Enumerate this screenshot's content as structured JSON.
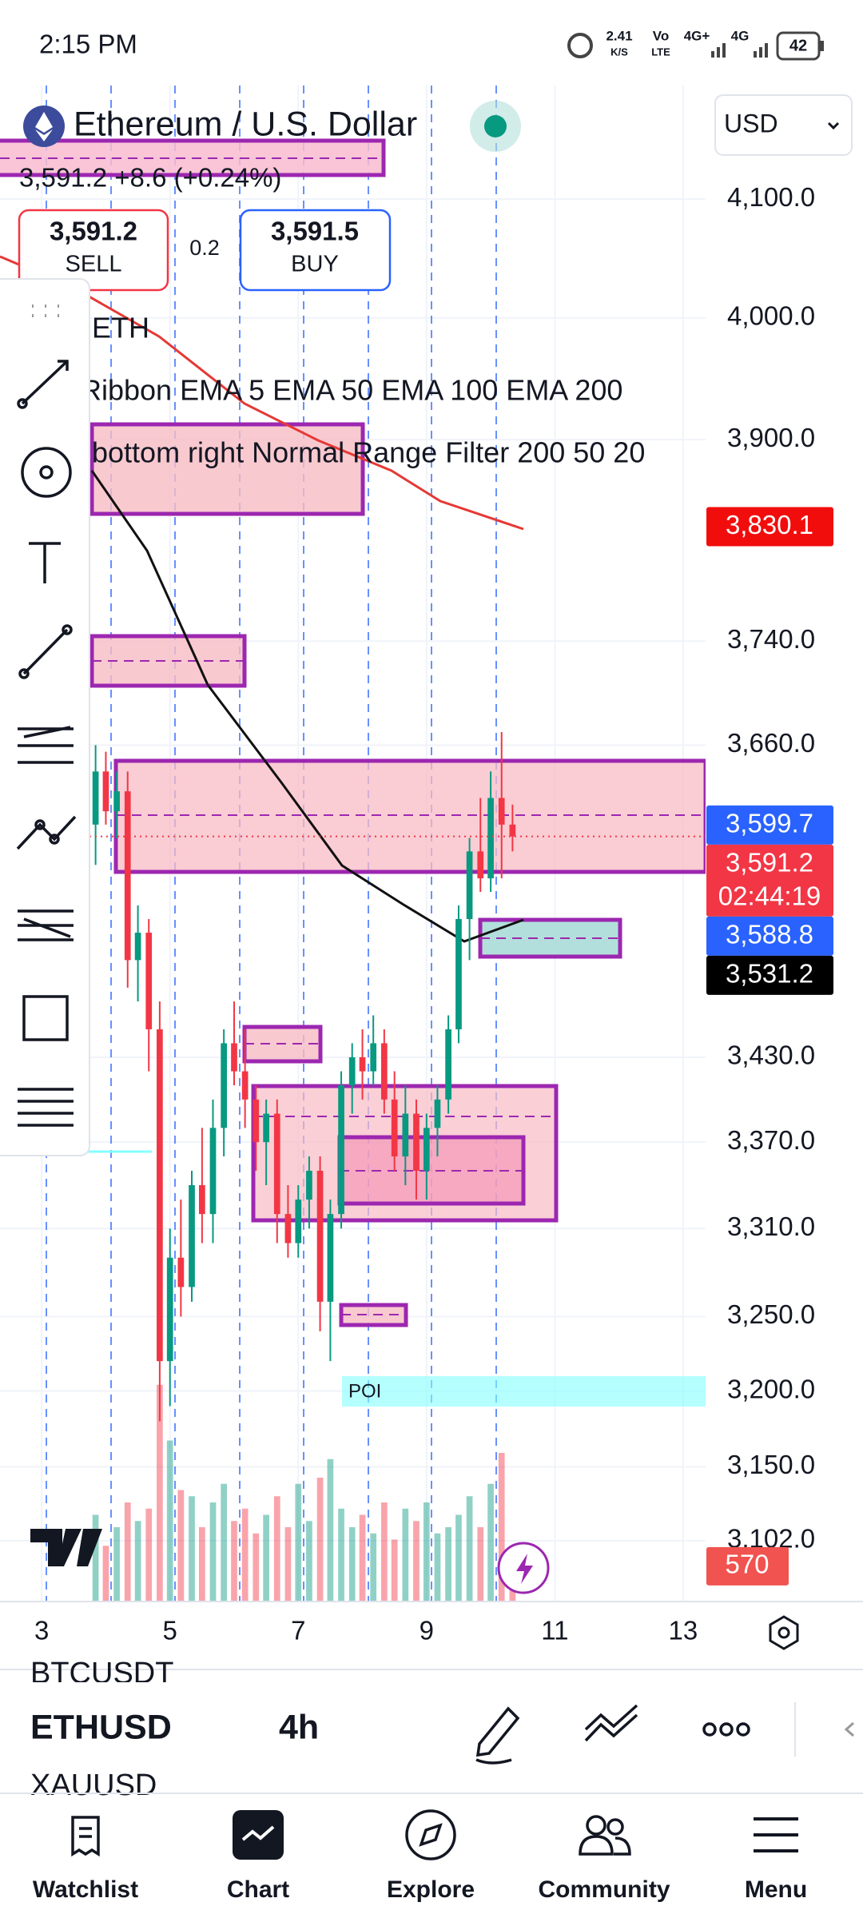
{
  "status_bar": {
    "time": "2:15 PM",
    "net_speed": "2.41",
    "net_unit": "K/S",
    "volte": "Vo",
    "lte": "LTE",
    "sim1": "4G+",
    "sim2": "4G",
    "battery": "42"
  },
  "header": {
    "title": "Ethereum / U.S. Dollar",
    "quote": "3,591.2 +8.6 (+0.24%)",
    "sell_price": "3,591.2",
    "sell_label": "SELL",
    "spread": "0.2",
    "buy_price": "3,591.5",
    "buy_label": "BUY",
    "currency": "USD"
  },
  "legend": [
    "ETH",
    "Ribbon EMA 5 EMA 50 EMA 100 EMA 200",
    "bottom right Normal Range Filter 200 50 20"
  ],
  "chart": {
    "type": "candlestick",
    "scale": "log",
    "grid": true,
    "up_color": "#089981",
    "down_color": "#f23645",
    "ylim": [
      3063,
      4198
    ],
    "yticks": [
      {
        "value": 4100,
        "label": "4,100.0"
      },
      {
        "value": 4000,
        "label": "4,000.0"
      },
      {
        "value": 3900,
        "label": "3,900.0"
      },
      {
        "value": 3740,
        "label": "3,740.0"
      },
      {
        "value": 3660,
        "label": "3,660.0"
      },
      {
        "value": 3430,
        "label": "3,430.0"
      },
      {
        "value": 3370,
        "label": "3,370.0"
      },
      {
        "value": 3310,
        "label": "3,310.0"
      },
      {
        "value": 3250,
        "label": "3,250.0"
      },
      {
        "value": 3200,
        "label": "3,200.0"
      },
      {
        "value": 3150,
        "label": "3,150.0"
      },
      {
        "value": 3102,
        "label": "3,102.0"
      }
    ],
    "xlim": [
      2.35,
      13.35
    ],
    "xticks": [
      3,
      5,
      7,
      9,
      11,
      13
    ],
    "candles": {
      "x": [
        3.84,
        4.0,
        4.17,
        4.34,
        4.5,
        4.67,
        4.84,
        5.0,
        5.17,
        5.34,
        5.5,
        5.67,
        5.84,
        6.0,
        6.17,
        6.34,
        6.5,
        6.67,
        6.84,
        7.0,
        7.17,
        7.34,
        7.5,
        7.67,
        7.84,
        8.0,
        8.17,
        8.34,
        8.5,
        8.67,
        8.84,
        9.0,
        9.17,
        9.34,
        9.5,
        9.67,
        9.84,
        10.0,
        10.17,
        10.34
      ],
      "open": [
        3600,
        3640,
        3610,
        3625,
        3500,
        3520,
        3450,
        3220,
        3290,
        3270,
        3340,
        3320,
        3380,
        3440,
        3420,
        3400,
        3370,
        3390,
        3320,
        3300,
        3330,
        3350,
        3260,
        3320,
        3410,
        3430,
        3420,
        3440,
        3400,
        3360,
        3390,
        3350,
        3380,
        3400,
        3450,
        3530,
        3580,
        3560,
        3620,
        3600
      ],
      "high": [
        3660,
        3655,
        3640,
        3640,
        3540,
        3530,
        3470,
        3310,
        3330,
        3350,
        3380,
        3400,
        3450,
        3470,
        3450,
        3410,
        3400,
        3400,
        3340,
        3340,
        3360,
        3360,
        3330,
        3420,
        3440,
        3450,
        3460,
        3450,
        3420,
        3410,
        3400,
        3390,
        3410,
        3460,
        3540,
        3590,
        3620,
        3640,
        3670,
        3615
      ],
      "low": [
        3570,
        3600,
        3590,
        3480,
        3470,
        3420,
        3180,
        3190,
        3250,
        3260,
        3300,
        3300,
        3360,
        3410,
        3380,
        3350,
        3340,
        3300,
        3290,
        3290,
        3310,
        3240,
        3220,
        3310,
        3390,
        3400,
        3410,
        3390,
        3350,
        3340,
        3330,
        3330,
        3360,
        3390,
        3440,
        3500,
        3550,
        3550,
        3560,
        3580
      ],
      "close": [
        3640,
        3610,
        3625,
        3500,
        3520,
        3450,
        3220,
        3290,
        3270,
        3340,
        3320,
        3380,
        3440,
        3420,
        3400,
        3370,
        3390,
        3320,
        3300,
        3330,
        3350,
        3260,
        3320,
        3410,
        3430,
        3420,
        3440,
        3400,
        3360,
        3390,
        3350,
        3380,
        3400,
        3450,
        3530,
        3580,
        3560,
        3620,
        3600,
        3591.2
      ]
    },
    "volume": [
      1400,
      900,
      1200,
      1600,
      1300,
      1500,
      3500,
      2600,
      1800,
      1700,
      1200,
      1600,
      1900,
      1300,
      1500,
      1100,
      1400,
      1700,
      1200,
      1900,
      1300,
      2000,
      2300,
      1500,
      1200,
      1400,
      1100,
      1600,
      1000,
      1500,
      1300,
      1600,
      1100,
      1200,
      1400,
      1700,
      1200,
      1900,
      2400,
      570
    ],
    "volume_ylim": [
      0,
      4000
    ],
    "price_tags": [
      {
        "value": 3830.1,
        "label": "3,830.1",
        "color": "#f20d0d"
      },
      {
        "value": 3599.7,
        "label": "3,599.7",
        "color": "#2962ff"
      },
      {
        "value": 3591.2,
        "label": "3,591.2",
        "countdown": "02:44:19",
        "color": "#f23645"
      },
      {
        "value": 3588.8,
        "label": "3,588.8",
        "color": "#2962ff"
      },
      {
        "value": 3531.2,
        "label": "3,531.2",
        "color": "#000000"
      }
    ],
    "volume_tag": {
      "value": 570,
      "label": "570",
      "color": "#f05350"
    },
    "zone_label": "POI"
  },
  "toolbar": {
    "prev_symbol": "BTCUSDT",
    "symbol": "ETHUSD",
    "interval": "4h",
    "next_symbol": "XAUUSD"
  },
  "nav": [
    "Watchlist",
    "Chart",
    "Explore",
    "Community",
    "Menu"
  ]
}
